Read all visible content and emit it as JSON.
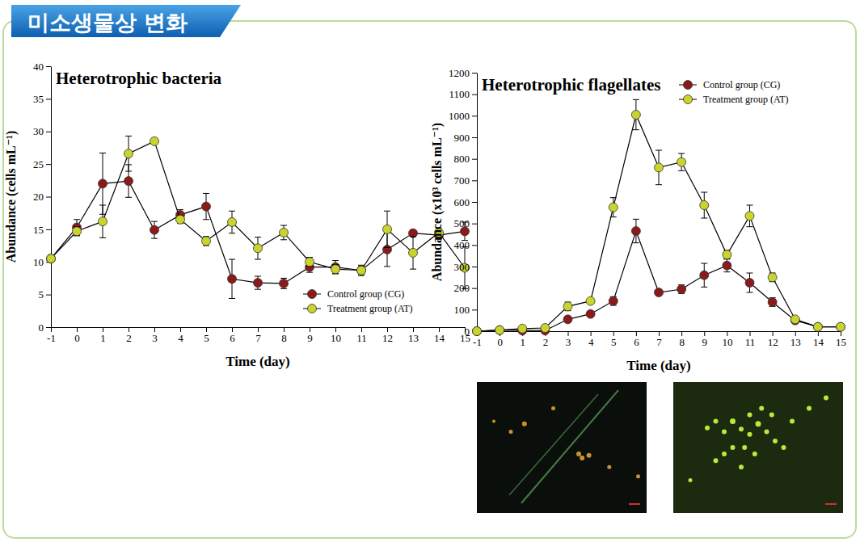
{
  "header": {
    "title": "미소생물상 변화"
  },
  "chart_data": [
    {
      "type": "line",
      "title": "Heterotrophic bacteria",
      "x_label": "Time (day)",
      "y_label": "Abundance (cells mL⁻¹)",
      "x": [
        -1,
        0,
        1,
        2,
        3,
        4,
        5,
        6,
        7,
        8,
        9,
        10,
        11,
        12,
        13,
        14,
        15
      ],
      "xlim": [
        -1,
        15
      ],
      "xticks": [
        -1,
        0,
        1,
        2,
        3,
        4,
        5,
        6,
        7,
        8,
        9,
        10,
        11,
        12,
        13,
        14,
        15
      ],
      "ylim": [
        0,
        40
      ],
      "yticks": [
        0,
        5,
        10,
        15,
        20,
        25,
        30,
        35,
        40
      ],
      "grid": false,
      "legend": "lower right",
      "series": [
        {
          "name": "Control group (CG)",
          "color": "#8b1a1a",
          "marker": "circle",
          "line_style": "solid",
          "values": [
            10.5,
            15.3,
            22,
            22.4,
            14.9,
            17.2,
            18.5,
            7.4,
            6.8,
            6.7,
            9.2,
            9.2,
            8.7,
            11.9,
            14.4,
            14.1,
            14.7
          ],
          "errors": [
            0.5,
            1.2,
            4.7,
            2.5,
            1.3,
            0.8,
            2,
            3,
            1,
            0.8,
            0.8,
            1,
            0.8,
            2.6,
            0.5,
            0.6,
            1.4
          ]
        },
        {
          "name": "Treatment group (AT)",
          "color": "#c9d42c",
          "marker": "circle",
          "line_style": "solid",
          "values": [
            10.5,
            14.7,
            16.2,
            26.6,
            28.5,
            16.5,
            13.2,
            16.1,
            12.1,
            14.5,
            10,
            8.9,
            8.7,
            15,
            11.4,
            14.5,
            9.1
          ],
          "errors": [
            0.5,
            0.7,
            2.5,
            2.7,
            0.3,
            0.6,
            0.7,
            1.7,
            1.7,
            1.1,
            0.7,
            0.7,
            0.6,
            2.8,
            2.5,
            0.6,
            3.2
          ]
        }
      ]
    },
    {
      "type": "line",
      "title": "Heterotrophic flagellates",
      "x_label": "Time (day)",
      "y_label": "Abundance (x10³ cells mL⁻¹)",
      "x": [
        -1,
        0,
        1,
        2,
        3,
        4,
        5,
        6,
        7,
        8,
        9,
        10,
        11,
        12,
        13,
        14,
        15
      ],
      "xlim": [
        -1,
        15
      ],
      "xticks": [
        -1,
        0,
        1,
        2,
        3,
        4,
        5,
        6,
        7,
        8,
        9,
        10,
        11,
        12,
        13,
        14,
        15
      ],
      "ylim": [
        0,
        1200
      ],
      "yticks": [
        0,
        100,
        200,
        300,
        400,
        500,
        600,
        700,
        800,
        900,
        1000,
        1100,
        1200
      ],
      "grid": false,
      "legend": "upper right",
      "series": [
        {
          "name": "Control group (CG)",
          "color": "#8b1a1a",
          "marker": "circle",
          "line_style": "solid",
          "values": [
            0,
            5,
            3,
            3,
            55,
            80,
            140,
            465,
            180,
            195,
            260,
            305,
            225,
            135,
            50,
            20,
            20
          ],
          "errors": [
            0,
            3,
            3,
            3,
            8,
            10,
            20,
            55,
            8,
            20,
            55,
            30,
            45,
            20,
            8,
            5,
            5
          ]
        },
        {
          "name": "Treatment group (AT)",
          "color": "#c9d42c",
          "marker": "circle",
          "line_style": "solid",
          "values": [
            0,
            5,
            12,
            15,
            115,
            140,
            575,
            1005,
            760,
            785,
            585,
            355,
            535,
            250,
            55,
            20,
            20
          ],
          "errors": [
            0,
            3,
            5,
            5,
            20,
            10,
            45,
            70,
            80,
            40,
            60,
            20,
            50,
            20,
            10,
            5,
            8
          ]
        }
      ]
    }
  ]
}
